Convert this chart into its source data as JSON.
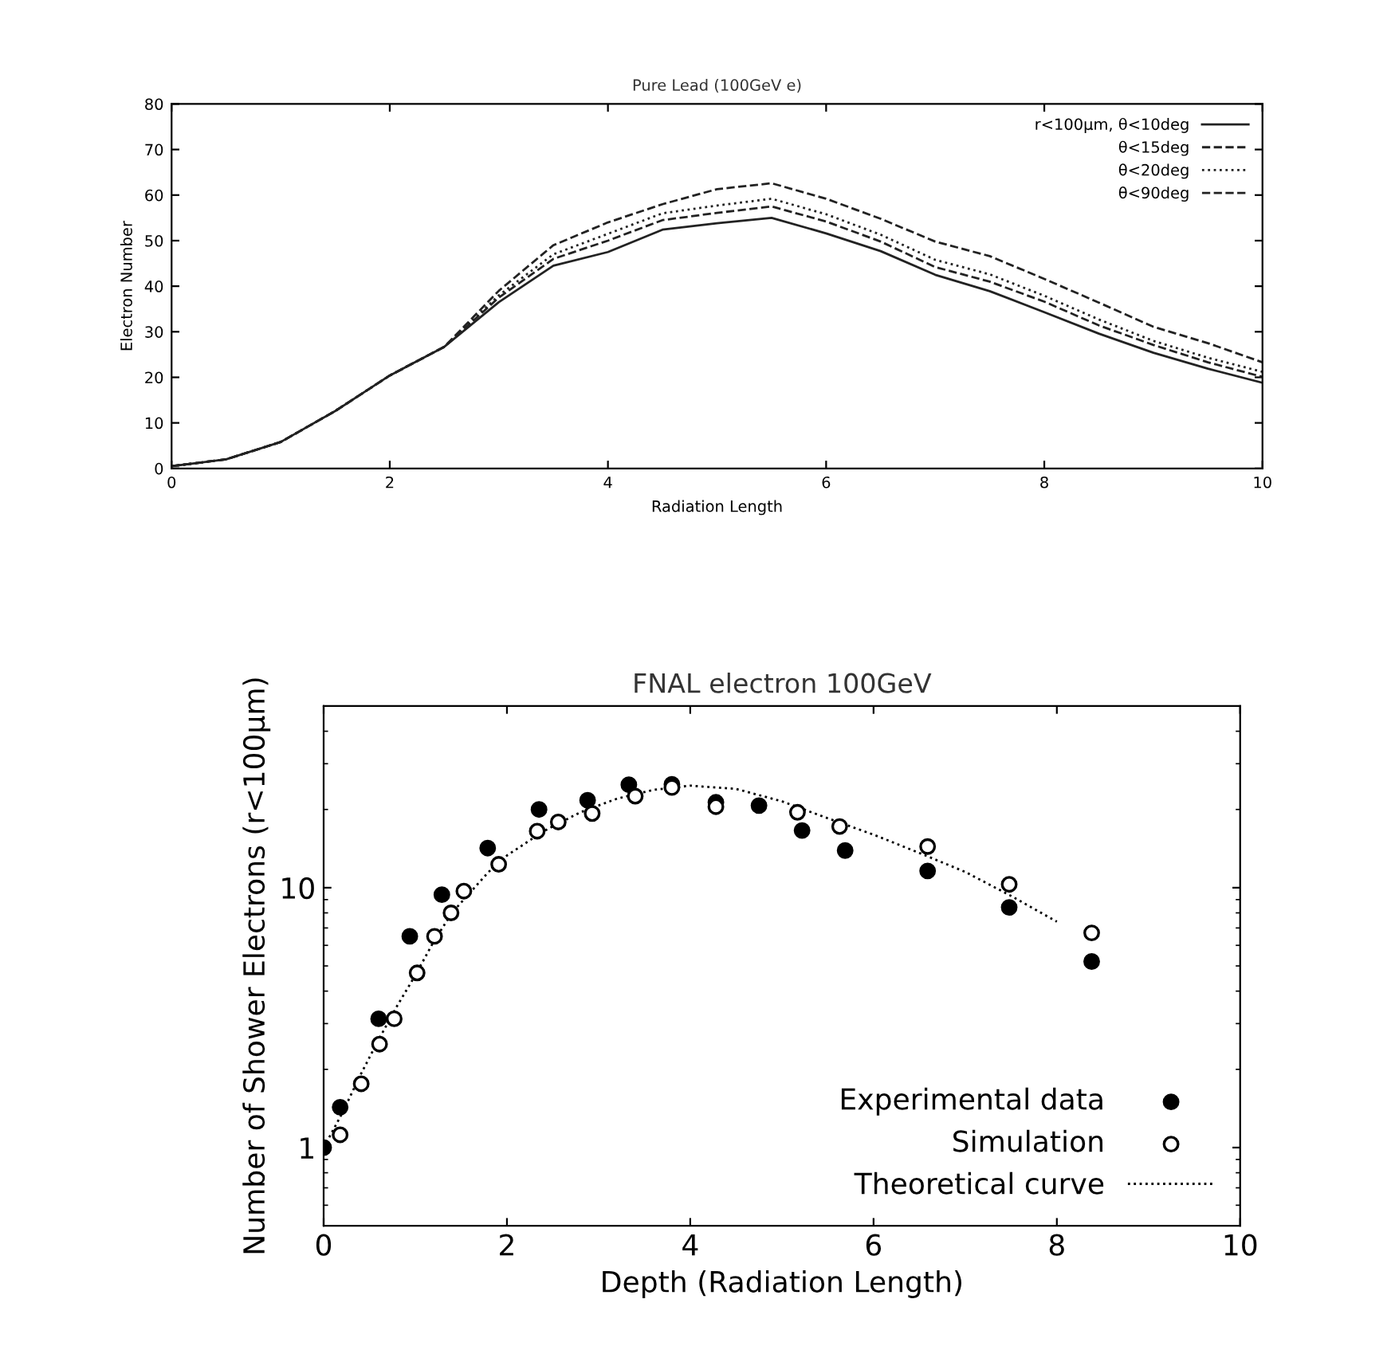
{
  "chart_data": [
    {
      "type": "line",
      "title": "Pure Lead (100GeV e)",
      "xlabel": "Radiation Length",
      "ylabel": "Electron Number",
      "x": [
        0,
        0.5,
        1,
        1.5,
        2,
        2.5,
        3,
        3.5,
        4,
        4.5,
        5,
        5.5,
        6,
        6.5,
        7,
        7.5,
        8,
        8.5,
        9,
        9.5,
        10
      ],
      "series": [
        {
          "name": "r<100μm, θ<10deg",
          "color": "#222222",
          "line_style": "solid",
          "values": [
            0.5,
            2,
            5.8,
            12.6,
            20.4,
            26.7,
            36.5,
            44.5,
            47.5,
            52.4,
            53.8,
            55,
            51.6,
            47.7,
            42.5,
            38.9,
            34.3,
            29.6,
            25.4,
            21.9,
            18.8
          ]
        },
        {
          "name": "θ<15deg",
          "color": "#222222",
          "line_style": "dashed",
          "values": [
            0.5,
            2,
            5.8,
            12.6,
            20.4,
            26.7,
            37.5,
            46,
            50,
            54.5,
            56.1,
            57.5,
            54.2,
            49.8,
            44.2,
            41,
            36.6,
            31.4,
            27.1,
            23.3,
            20.1
          ]
        },
        {
          "name": "θ<20deg",
          "color": "#222222",
          "line_style": "dotted",
          "values": [
            0.5,
            2,
            5.8,
            12.6,
            20.4,
            26.7,
            38,
            47,
            51.5,
            56,
            57.7,
            59.2,
            55.8,
            51.3,
            45.8,
            42.6,
            37.9,
            32.7,
            28,
            24.3,
            21.2
          ]
        },
        {
          "name": "θ<90deg",
          "color": "#222222",
          "line_style": "dashed",
          "values": [
            0.5,
            2,
            5.8,
            12.6,
            20.4,
            26.7,
            39,
            49,
            54,
            58,
            61.3,
            62.6,
            59.2,
            54.8,
            49.8,
            46.6,
            41.6,
            36.4,
            31.1,
            27.5,
            23.3
          ]
        }
      ],
      "xlim": [
        0,
        10
      ],
      "xticks": [
        0,
        2,
        4,
        6,
        8,
        10
      ],
      "ylim": [
        0,
        80
      ],
      "yticks": [
        0,
        10,
        20,
        30,
        40,
        50,
        60,
        70,
        80
      ],
      "legend": "top right",
      "grid": false,
      "marker": "none"
    },
    {
      "type": "scatter",
      "title": "FNAL electron 100GeV",
      "xlabel": "Depth (Radiation Length)",
      "ylabel": "Number of Shower Electrons (r<100μm)",
      "log": "y",
      "xlim": [
        0,
        10
      ],
      "xticks": [
        0,
        2,
        4,
        6,
        8,
        10
      ],
      "ylim": [
        0.5,
        50
      ],
      "yticks": [
        1,
        10
      ],
      "series": [
        {
          "name": "Experimental data",
          "type": "scatter",
          "marker": "circle",
          "color": "#000000",
          "x": [
            0,
            0.18,
            0.6,
            0.94,
            1.29,
            1.79,
            2.35,
            2.88,
            3.33,
            3.8,
            4.28,
            4.75,
            5.22,
            5.69,
            6.59,
            7.48,
            8.38
          ],
          "values": [
            1.0,
            1.43,
            3.13,
            6.5,
            9.4,
            14.2,
            20,
            21.7,
            24.9,
            25,
            21.3,
            20.7,
            16.6,
            13.9,
            11.6,
            8.4,
            5.2
          ]
        },
        {
          "name": "Simulation",
          "type": "scatter",
          "marker": "circle",
          "color": "#ffffff",
          "x": [
            0.18,
            0.41,
            0.61,
            0.77,
            1.02,
            1.21,
            1.39,
            1.53,
            1.91,
            2.33,
            2.56,
            2.93,
            3.4,
            3.8,
            4.28,
            5.17,
            5.63,
            6.59,
            7.48,
            8.38
          ],
          "values": [
            1.12,
            1.76,
            2.5,
            3.13,
            4.7,
            6.5,
            8,
            9.7,
            12.3,
            16.5,
            17.9,
            19.3,
            22.5,
            24.3,
            20.5,
            19.5,
            17.2,
            14.4,
            10.3,
            6.7
          ]
        },
        {
          "name": "Theoretical curve",
          "type": "line",
          "marker": "none",
          "line_style": "dotted",
          "color": "#000000",
          "x": [
            0,
            0.2,
            0.4,
            0.6,
            0.8,
            1.0,
            1.2,
            1.4,
            1.6,
            1.8,
            2.0,
            2.4,
            2.8,
            3.2,
            3.6,
            4.0,
            4.5,
            5.0,
            5.5,
            6.0,
            6.5,
            7.0,
            7.5,
            8.0
          ],
          "values": [
            1.0,
            1.35,
            1.9,
            2.6,
            3.5,
            4.6,
            6.2,
            8.0,
            9.6,
            11.5,
            13.3,
            16.5,
            19.5,
            22,
            23.8,
            24.7,
            24,
            21.5,
            18.5,
            16,
            13.6,
            11.5,
            9.3,
            7.4
          ]
        }
      ],
      "legend": "bottom right",
      "grid": false
    }
  ]
}
